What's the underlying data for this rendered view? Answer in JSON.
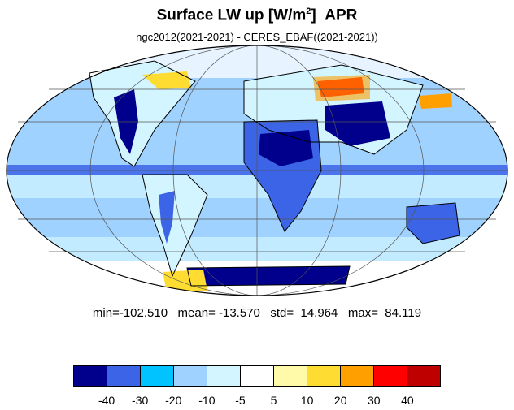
{
  "header": {
    "title_main": "Surface LW up [W/m",
    "title_sup": "2",
    "title_close": "]",
    "title_month": "APR",
    "subtitle": "ngc2012(2021-2021) - CERES_EBAF((2021-2021))"
  },
  "stats": {
    "text": "min=-102.510   mean= -13.570   std=  14.964   max=  84.119"
  },
  "colorbar": {
    "colors": [
      "#00008c",
      "#3c64e6",
      "#00c3ff",
      "#a0d2ff",
      "#d2f5ff",
      "#ffffff",
      "#fffaaa",
      "#ffdc32",
      "#ffa000",
      "#ff0000",
      "#be0000"
    ],
    "labels": [
      "-40",
      "-30",
      "-20",
      "-10",
      "-5",
      "5",
      "10",
      "20",
      "30",
      "40"
    ]
  },
  "map": {
    "projection": "mollweide",
    "background_color": "#a0d2ff",
    "coastline_color": "#000000",
    "grid": true
  }
}
